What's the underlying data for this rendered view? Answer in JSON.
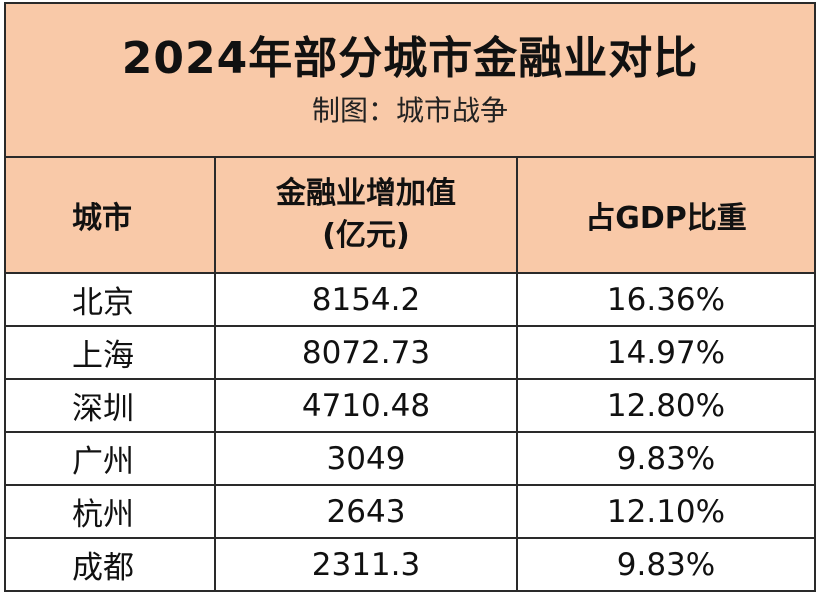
{
  "title": "2024年部分城市金融业对比",
  "subtitle": "制图：城市战争",
  "headers": {
    "city": "城市",
    "value_line1": "金融业增加值",
    "value_line2": "(亿元)",
    "share": "占GDP比重"
  },
  "rows": [
    {
      "city": "北京",
      "value": "8154.2",
      "share": "16.36%"
    },
    {
      "city": "上海",
      "value": "8072.73",
      "share": "14.97%"
    },
    {
      "city": "深圳",
      "value": "4710.48",
      "share": "12.80%"
    },
    {
      "city": "广州",
      "value": "3049",
      "share": "9.83%"
    },
    {
      "city": "杭州",
      "value": "2643",
      "share": "12.10%"
    },
    {
      "city": "成都",
      "value": "2311.3",
      "share": "9.83%"
    }
  ],
  "colors": {
    "header_bg": "#f9c9a8",
    "border": "#2a2a2a",
    "text": "#111111"
  }
}
